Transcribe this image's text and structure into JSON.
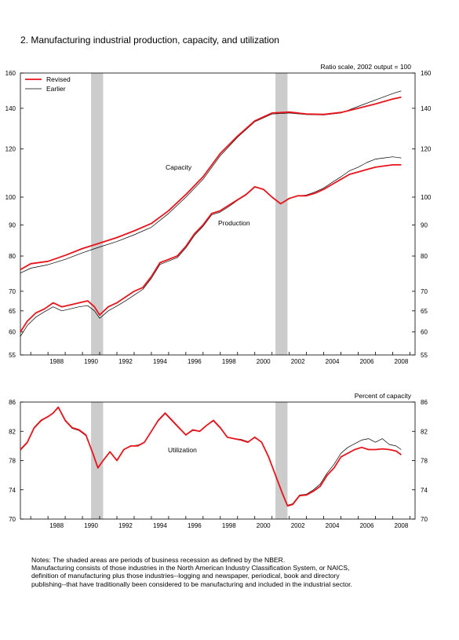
{
  "figure_title": "2. Manufacturing industrial production, capacity, and utilization",
  "notes": [
    "Notes: The shaded areas are periods of business recession as defined by the NBER.",
    "Manufacturing consists of those industries in the North American Industry Classification System, or NAICS,",
    "definition of manufacturing plus those industries--logging and newspaper, periodical, book and directory",
    "publishing--that have traditionally been considered to be manufacturing and included in the industrial sector."
  ],
  "colors": {
    "revised": "#e8141c",
    "earlier": "#000000",
    "recession": "#cccccc"
  },
  "chart_data": [
    {
      "type": "line",
      "scale": "log",
      "ylim": [
        55,
        160
      ],
      "yticks": [
        55,
        60,
        65,
        70,
        80,
        90,
        100,
        120,
        140,
        160
      ],
      "ytick_labels": [
        "55",
        "60",
        "65",
        "70",
        "80",
        "90",
        "100",
        "120",
        "140",
        "160"
      ],
      "xlim": [
        1986.4,
        2009.3
      ],
      "xticks": [
        1988,
        1990,
        1992,
        1994,
        1996,
        1998,
        2000,
        2002,
        2004,
        2006,
        2008
      ],
      "xtick_labels": [
        "1988",
        "1990",
        "1992",
        "1994",
        "1996",
        "1998",
        "2000",
        "2002",
        "2004",
        "2006",
        "2008"
      ],
      "scale_note": "Ratio scale, 2002 output = 100",
      "legend": {
        "placement": "top-left",
        "entries": [
          "Revised",
          "Earlier"
        ]
      },
      "recessions": [
        [
          1990.5,
          1991.2
        ],
        [
          2001.2,
          2001.9
        ]
      ],
      "annotations": [
        "Capacity",
        "Production"
      ],
      "series": [
        {
          "name": "Capacity",
          "variant": "Revised",
          "x": [
            1986.4,
            1987,
            1988,
            1989,
            1990,
            1991,
            1992,
            1993,
            1994,
            1995,
            1996,
            1997,
            1998,
            1999,
            2000,
            2001,
            2002,
            2003,
            2004,
            2005,
            2006,
            2007,
            2008,
            2008.5
          ],
          "y": [
            76,
            77.7,
            78.4,
            80.2,
            82.3,
            84.0,
            85.8,
            88.0,
            90.5,
            95,
            101,
            108,
            118,
            126,
            133.5,
            137.5,
            138,
            137,
            136.8,
            137.8,
            140,
            142.3,
            145,
            146
          ]
        },
        {
          "name": "Capacity",
          "variant": "Earlier",
          "x": [
            1986.4,
            1987,
            1988,
            1989,
            1990,
            1991,
            1992,
            1993,
            1994,
            1995,
            1996,
            1997,
            1998,
            1999,
            2000,
            2001,
            2002,
            2003,
            2004,
            2005,
            2006,
            2007,
            2008,
            2008.5
          ],
          "y": [
            75,
            76.4,
            77.4,
            79,
            81,
            82.8,
            84.5,
            86.7,
            89.2,
            94,
            100,
            107,
            117,
            125.5,
            133,
            137,
            137.5,
            136.7,
            136.5,
            137.5,
            141,
            144.5,
            148,
            149.5
          ]
        },
        {
          "name": "Production",
          "variant": "Revised",
          "x": [
            1986.4,
            1986.8,
            1987.3,
            1987.8,
            1988.3,
            1988.8,
            1989.3,
            1989.8,
            1990.3,
            1990.7,
            1991.0,
            1991.5,
            1992,
            1992.5,
            1993,
            1993.5,
            1994,
            1994.5,
            1995,
            1995.5,
            1996,
            1996.5,
            1997,
            1997.5,
            1998,
            1998.5,
            1999,
            1999.5,
            2000,
            2000.5,
            2001,
            2001.5,
            2002,
            2002.5,
            2003,
            2003.5,
            2004,
            2004.5,
            2005,
            2005.5,
            2006,
            2006.5,
            2007,
            2007.5,
            2008,
            2008.5
          ],
          "y": [
            60,
            62.5,
            64.5,
            65.5,
            67,
            66,
            66.5,
            67,
            67.5,
            66,
            64,
            66,
            67,
            68.5,
            70,
            71,
            74,
            78,
            79,
            80,
            83,
            87,
            90,
            94,
            95,
            97,
            99,
            101,
            104,
            103,
            100,
            97.5,
            99.5,
            100.5,
            100.5,
            101.5,
            103,
            105,
            107,
            109,
            110,
            111,
            112,
            112.5,
            113,
            113
          ]
        },
        {
          "name": "Production",
          "variant": "Earlier",
          "x": [
            1986.4,
            1986.8,
            1987.3,
            1987.8,
            1988.3,
            1988.8,
            1989.3,
            1989.8,
            1990.3,
            1990.7,
            1991.0,
            1991.5,
            1992,
            1992.5,
            1993,
            1993.5,
            1994,
            1994.5,
            1995,
            1995.5,
            1996,
            1996.5,
            1997,
            1997.5,
            1998,
            1998.5,
            1999,
            1999.5,
            2000,
            2000.5,
            2001,
            2001.5,
            2002,
            2002.5,
            2003,
            2003.5,
            2004,
            2004.5,
            2005,
            2005.5,
            2006,
            2006.5,
            2007,
            2007.5,
            2008,
            2008.5
          ],
          "y": [
            59,
            61.5,
            63.5,
            64.8,
            66,
            65,
            65.5,
            66,
            66.3,
            65,
            63.2,
            65,
            66.2,
            67.5,
            69,
            70.5,
            73.5,
            77.5,
            78.5,
            79.5,
            82.5,
            86.5,
            89.5,
            93.5,
            94.5,
            96.5,
            98.8,
            100.8,
            103.8,
            103,
            100,
            97.5,
            99.5,
            100.5,
            100.8,
            102,
            103.5,
            105.8,
            108,
            110.5,
            112,
            114,
            115.5,
            116,
            116.5,
            116
          ]
        }
      ]
    },
    {
      "type": "line",
      "ylim": [
        70,
        86
      ],
      "yticks": [
        70,
        74,
        78,
        82,
        86
      ],
      "ytick_labels": [
        "70",
        "74",
        "78",
        "82",
        "86"
      ],
      "xlim": [
        1986.4,
        2009.3
      ],
      "xticks": [
        1988,
        1990,
        1992,
        1994,
        1996,
        1998,
        2000,
        2002,
        2004,
        2006,
        2008
      ],
      "xtick_labels": [
        "1988",
        "1990",
        "1992",
        "1994",
        "1996",
        "1998",
        "2000",
        "2002",
        "2004",
        "2006",
        "2008"
      ],
      "scale_note": "Percent of capacity",
      "recessions": [
        [
          1990.5,
          1991.2
        ],
        [
          2001.2,
          2001.9
        ]
      ],
      "annotations": [
        "Utilization"
      ],
      "series": [
        {
          "name": "Utilization",
          "variant": "Revised",
          "x": [
            1986.4,
            1986.8,
            1987.2,
            1987.6,
            1988.0,
            1988.3,
            1988.6,
            1989.0,
            1989.4,
            1989.8,
            1990.2,
            1990.6,
            1990.9,
            1991.2,
            1991.6,
            1992.0,
            1992.4,
            1992.8,
            1993.2,
            1993.6,
            1994.0,
            1994.4,
            1994.8,
            1995.2,
            1995.6,
            1996.0,
            1996.4,
            1996.8,
            1997.2,
            1997.6,
            1998.0,
            1998.4,
            1998.8,
            1999.2,
            1999.6,
            2000.0,
            2000.4,
            2000.8,
            2001.2,
            2001.6,
            2001.9,
            2002.2,
            2002.6,
            2003.0,
            2003.4,
            2003.8,
            2004.2,
            2004.6,
            2005.0,
            2005.4,
            2005.8,
            2006.2,
            2006.6,
            2007.0,
            2007.4,
            2007.8,
            2008.2,
            2008.5
          ],
          "y": [
            79.5,
            80.5,
            82.5,
            83.5,
            84,
            84.5,
            85.3,
            83.5,
            82.5,
            82.2,
            81.5,
            79,
            77,
            78,
            79.2,
            78,
            79.5,
            80,
            80,
            80.5,
            82,
            83.5,
            84.5,
            83.5,
            82.5,
            81.5,
            82.2,
            82,
            82.8,
            83.5,
            82.5,
            81.2,
            81,
            80.8,
            80.5,
            81.2,
            80.5,
            78.5,
            76,
            73.5,
            71.8,
            72,
            73.2,
            73.3,
            73.8,
            74.5,
            76,
            77,
            78.5,
            79,
            79.5,
            79.8,
            79.5,
            79.5,
            79.6,
            79.5,
            79.3,
            78.8
          ]
        },
        {
          "name": "Utilization",
          "variant": "Earlier",
          "x": [
            1986.4,
            1986.8,
            1987.2,
            1987.6,
            1988.0,
            1988.3,
            1988.6,
            1989.0,
            1989.4,
            1989.8,
            1990.2,
            1990.6,
            1990.9,
            1991.2,
            1991.6,
            1992.0,
            1992.4,
            1992.8,
            1993.2,
            1993.6,
            1994.0,
            1994.4,
            1994.8,
            1995.2,
            1995.6,
            1996.0,
            1996.4,
            1996.8,
            1997.2,
            1997.6,
            1998.0,
            1998.4,
            1998.8,
            1999.2,
            1999.6,
            2000.0,
            2000.4,
            2000.8,
            2001.2,
            2001.6,
            2001.9,
            2002.2,
            2002.6,
            2003.0,
            2003.4,
            2003.8,
            2004.2,
            2004.6,
            2005.0,
            2005.4,
            2005.8,
            2006.2,
            2006.6,
            2007.0,
            2007.4,
            2007.8,
            2008.2,
            2008.5
          ],
          "y": [
            79.4,
            80.4,
            82.4,
            83.4,
            84,
            84.5,
            85.2,
            83.4,
            82.4,
            82.1,
            81.4,
            79,
            77.1,
            78,
            79.2,
            78.1,
            79.5,
            80,
            80.1,
            80.5,
            82,
            83.4,
            84.4,
            83.4,
            82.4,
            81.5,
            82.1,
            82,
            82.8,
            83.4,
            82.4,
            81.2,
            81,
            80.9,
            80.6,
            81.1,
            80.5,
            78.6,
            76.1,
            73.6,
            71.9,
            72.1,
            73.3,
            73.4,
            74,
            74.8,
            76.3,
            77.5,
            79,
            79.8,
            80.3,
            80.8,
            81,
            80.5,
            81,
            80.2,
            80,
            79.5
          ]
        }
      ]
    }
  ]
}
